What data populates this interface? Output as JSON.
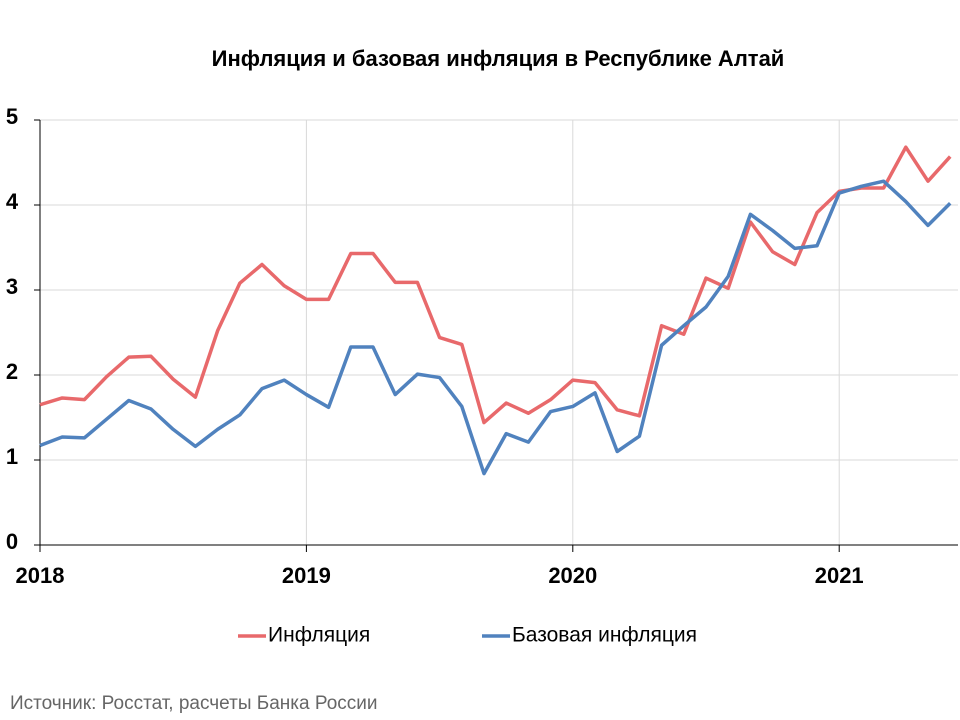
{
  "chart_data": {
    "type": "line",
    "title": "Инфляция и базовая инфляция в Республике Алтай",
    "categories": [
      "2018",
      null,
      null,
      null,
      null,
      null,
      null,
      null,
      null,
      null,
      null,
      null,
      "2019",
      null,
      null,
      null,
      null,
      null,
      null,
      null,
      null,
      null,
      null,
      null,
      "2020",
      null,
      null,
      null,
      null,
      null,
      null,
      null,
      null,
      null,
      null,
      null,
      "2021",
      null,
      null,
      null,
      null,
      null
    ],
    "series": [
      {
        "name": "Инфляция",
        "color": "#e8696b",
        "values": [
          1.65,
          1.73,
          1.71,
          1.98,
          2.21,
          2.22,
          1.95,
          1.74,
          2.52,
          3.08,
          3.3,
          3.05,
          2.89,
          2.89,
          3.43,
          3.43,
          3.09,
          3.09,
          2.44,
          2.36,
          1.44,
          1.67,
          1.55,
          1.71,
          1.94,
          1.91,
          1.59,
          1.52,
          2.58,
          2.48,
          3.14,
          3.02,
          3.8,
          3.45,
          3.3,
          3.91,
          4.16,
          4.2,
          4.2,
          4.68,
          4.28,
          4.57
        ]
      },
      {
        "name": "Базовая инфляция",
        "color": "#5082be",
        "values": [
          1.17,
          1.27,
          1.26,
          1.48,
          1.7,
          1.6,
          1.36,
          1.16,
          1.36,
          1.53,
          1.84,
          1.94,
          1.77,
          1.62,
          2.33,
          2.33,
          1.77,
          2.01,
          1.97,
          1.63,
          0.84,
          1.31,
          1.21,
          1.57,
          1.63,
          1.79,
          1.1,
          1.28,
          2.35,
          2.58,
          2.8,
          3.16,
          3.89,
          3.7,
          3.49,
          3.52,
          4.14,
          4.22,
          4.28,
          4.04,
          3.76,
          4.02
        ]
      }
    ],
    "ylim": [
      0,
      5
    ],
    "yticks": [
      0,
      1,
      2,
      3,
      4,
      5
    ],
    "grid": true,
    "source": "Источник: Росстат, расчеты Банка России"
  }
}
